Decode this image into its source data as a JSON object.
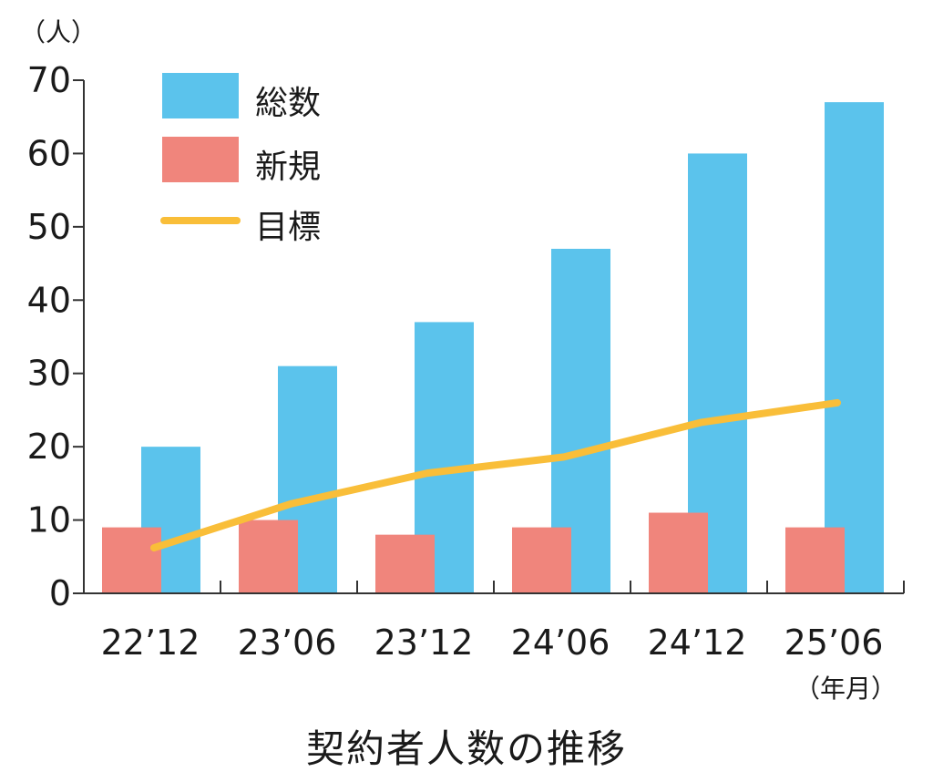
{
  "chart_data": {
    "type": "bar",
    "title": "契約者人数の推移",
    "y_unit": "（人）",
    "x_unit": "（年月）",
    "categories": [
      "22’12",
      "23’06",
      "23’12",
      "24’06",
      "24’12",
      "25’06"
    ],
    "y_ticks": [
      "0",
      "10",
      "20",
      "30",
      "40",
      "50",
      "60",
      "70"
    ],
    "ylim": [
      0,
      70
    ],
    "grid": false,
    "legend_position": "top-left",
    "series": [
      {
        "name": "総数",
        "type": "bar",
        "color": "#5bc3ec",
        "values": [
          20,
          31,
          37,
          47,
          60,
          67
        ]
      },
      {
        "name": "新規",
        "type": "bar",
        "color": "#f0857c",
        "values": [
          9,
          10,
          8,
          9,
          11,
          9
        ]
      },
      {
        "name": "目標",
        "type": "line",
        "color": "#f9be39",
        "values": [
          6.2,
          12.2,
          16.4,
          18.6,
          23.3,
          26
        ]
      }
    ]
  }
}
